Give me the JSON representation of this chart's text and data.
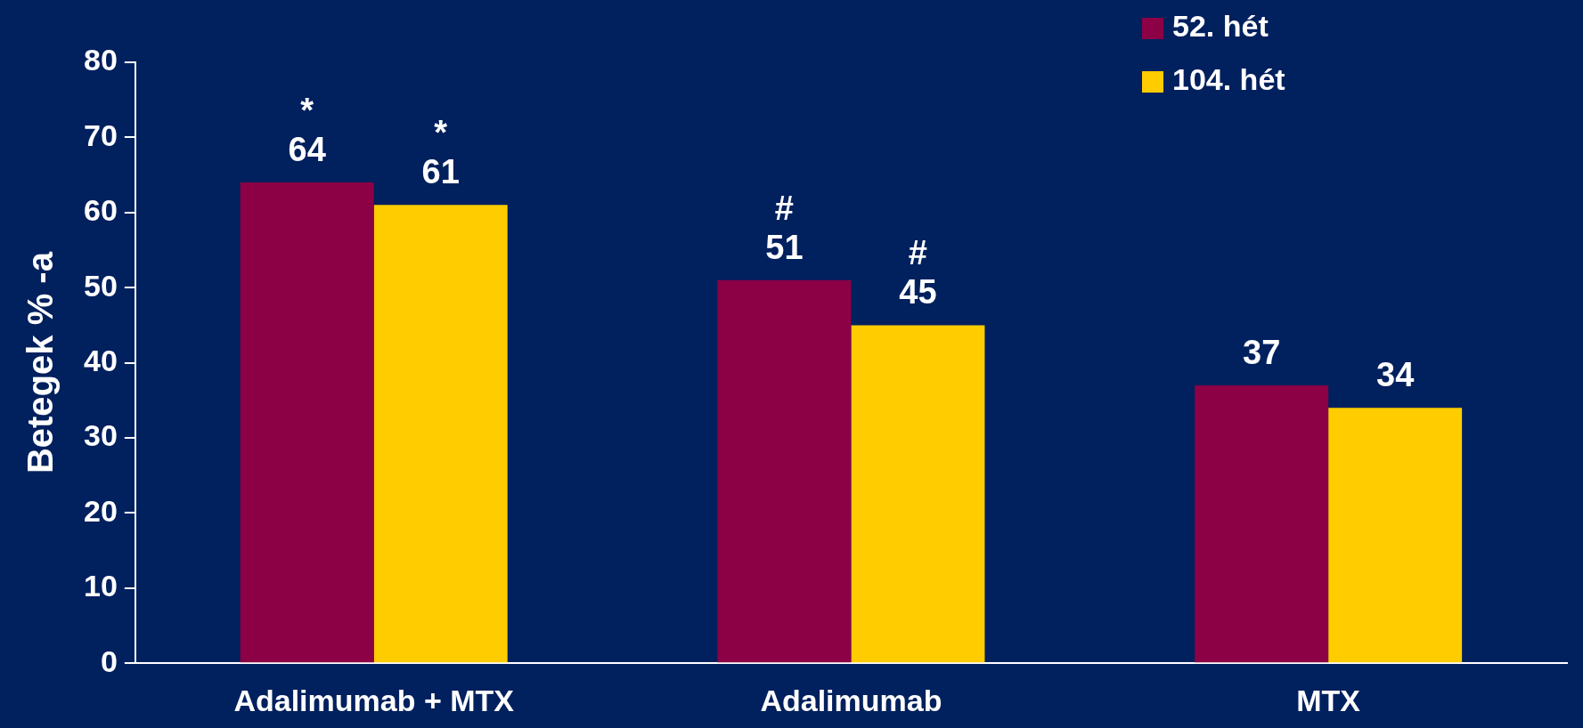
{
  "chart_data": {
    "type": "bar",
    "ylabel": "Betegek % -a",
    "categories": [
      "Adalimumab + MTX",
      "Adalimumab",
      "MTX"
    ],
    "series": [
      {
        "name": "52. hét",
        "color": "#8c0045",
        "values": [
          64,
          51,
          37
        ]
      },
      {
        "name": "104. hét",
        "color": "#ffcc00",
        "values": [
          61,
          45,
          34
        ]
      }
    ],
    "data_labels": true,
    "annotations": [
      {
        "text": "*",
        "x": "Adalimumab + MTX",
        "y": 64
      },
      {
        "text": "*",
        "x": "Adalimumab + MTX",
        "y": 61
      },
      {
        "text": "#",
        "x": "Adalimumab",
        "y": 45
      },
      {
        "text": "#",
        "x": "Adalimumab",
        "y": 51
      }
    ],
    "ylim": [
      0,
      80
    ],
    "yticks": [
      0,
      10,
      20,
      30,
      40,
      50,
      60,
      70,
      80
    ],
    "grid": false,
    "legend": "top right"
  }
}
